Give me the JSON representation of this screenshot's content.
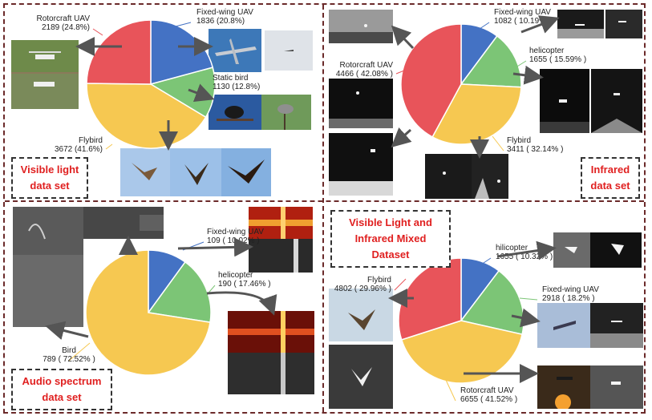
{
  "colors": {
    "blue": "#4472C4",
    "green": "#7CC576",
    "yellow": "#F6C851",
    "red": "#E8545A",
    "frame": "#6b2a2a"
  },
  "chart_data": [
    {
      "type": "pie",
      "title": "Visible light data set",
      "series": [
        {
          "name": "Fixed-wing UAV",
          "value": 1836,
          "label": "1836 (20.8%)",
          "color": "#4472C4"
        },
        {
          "name": "Static bird",
          "value": 1130,
          "label": "1130 (12.8%)",
          "color": "#7CC576"
        },
        {
          "name": "Flybird",
          "value": 3672,
          "label": "3672 (41.6%)",
          "color": "#F6C851"
        },
        {
          "name": "Rotorcraft UAV",
          "value": 2189,
          "label": "2189 (24.8%)",
          "color": "#E8545A"
        }
      ]
    },
    {
      "type": "pie",
      "title": "Infrared data set",
      "series": [
        {
          "name": "Fixed-wing UAV",
          "value": 1082,
          "label": "1082 ( 10.19% )",
          "color": "#4472C4"
        },
        {
          "name": "helicopter",
          "value": 1655,
          "label": "1655 ( 15.59% )",
          "color": "#7CC576"
        },
        {
          "name": "Flybird",
          "value": 3411,
          "label": "3411 ( 32.14% )",
          "color": "#F6C851"
        },
        {
          "name": "Rotorcraft UAV",
          "value": 4466,
          "label": "4466 ( 42.08% )",
          "color": "#E8545A"
        }
      ]
    },
    {
      "type": "pie",
      "title": "Audio spectrum data set",
      "series": [
        {
          "name": "Fixed-wing UAV",
          "value": 109,
          "label": "109 ( 10.02% )",
          "color": "#4472C4"
        },
        {
          "name": "helicopter",
          "value": 190,
          "label": "190 ( 17.46% )",
          "color": "#7CC576"
        },
        {
          "name": "Bird",
          "value": 789,
          "label": "789 ( 72.52% )",
          "color": "#F6C851"
        }
      ]
    },
    {
      "type": "pie",
      "title": "Visible Light and Infrared Mixed Dataset",
      "series": [
        {
          "name": "hilicopter",
          "value": 1655,
          "label": "1655 ( 10.32% )",
          "color": "#4472C4"
        },
        {
          "name": "Fixed-wing UAV",
          "value": 2918,
          "label": "2918 ( 18.2% )",
          "color": "#7CC576"
        },
        {
          "name": "Rotorcraft UAV",
          "value": 6655,
          "label": "6655 ( 41.52% )",
          "color": "#F6C851"
        },
        {
          "name": "Flybird",
          "value": 4802,
          "label": "4802 ( 29.96% )",
          "color": "#E8545A"
        }
      ]
    }
  ],
  "panels": {
    "visible": {
      "title_line1": "Visible light",
      "title_line2": "data set"
    },
    "infrared": {
      "title_line1": "Infrared",
      "title_line2": "data set"
    },
    "audio": {
      "title_line1": "Audio spectrum",
      "title_line2": "data set"
    },
    "mixed": {
      "title_line1": "Visible Light and",
      "title_line2": "Infrared Mixed Dataset"
    }
  }
}
